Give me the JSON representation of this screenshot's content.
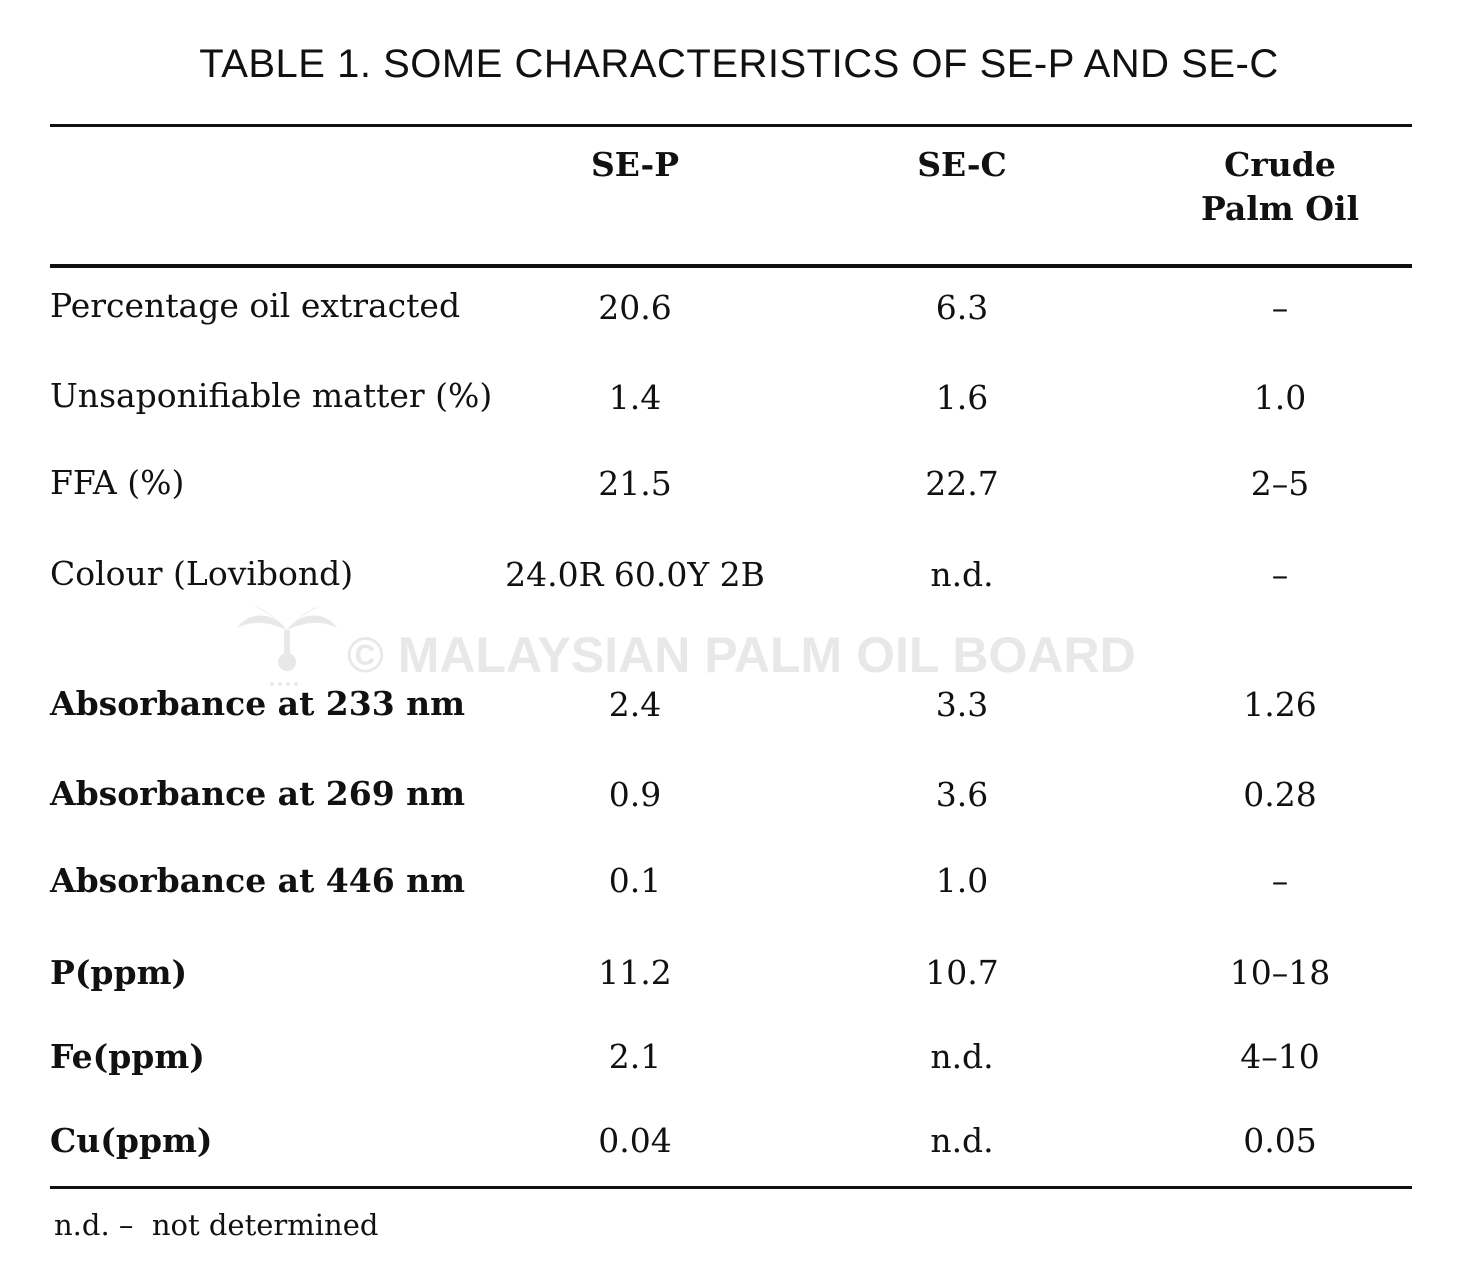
{
  "title": "TABLE 1.  SOME CHARACTERISTICS OF SE-P AND SE-C",
  "columns": {
    "sep": "SE-P",
    "sec": "SE-C",
    "cpo_line1": "Crude",
    "cpo_line2": "Palm Oil"
  },
  "rows": [
    {
      "label": "Percentage oil extracted",
      "sep": "20.6",
      "sec": "6.3",
      "cpo": "–"
    },
    {
      "label": "Unsaponifiable matter (%)",
      "sep": "1.4",
      "sec": "1.6",
      "cpo": "1.0"
    },
    {
      "label": "FFA (%)",
      "sep": "21.5",
      "sec": "22.7",
      "cpo": "2–5"
    },
    {
      "label": "Colour (Lovibond)",
      "sep": "24.0R 60.0Y 2B",
      "sec": "n.d.",
      "cpo": "–"
    },
    {
      "label": "Absorbance at 233 nm",
      "sep": "2.4",
      "sec": "3.3",
      "cpo": "1.26"
    },
    {
      "label": "Absorbance at 269 nm",
      "sep": "0.9",
      "sec": "3.6",
      "cpo": "0.28"
    },
    {
      "label": "Absorbance at 446 nm",
      "sep": "0.1",
      "sec": "1.0",
      "cpo": "–"
    },
    {
      "label": "P(ppm)",
      "sep": "11.2",
      "sec": "10.7",
      "cpo": "10–18"
    },
    {
      "label": "Fe(ppm)",
      "sep": "2.1",
      "sec": "n.d.",
      "cpo": "4–10"
    },
    {
      "label": "Cu(ppm)",
      "sep": "0.04",
      "sec": "n.d.",
      "cpo": "0.05"
    }
  ],
  "footnote": "n.d. –  not determined",
  "watermark": {
    "text": "© MALAYSIAN PALM OIL BOARD",
    "icon": "palm-tree-icon"
  }
}
